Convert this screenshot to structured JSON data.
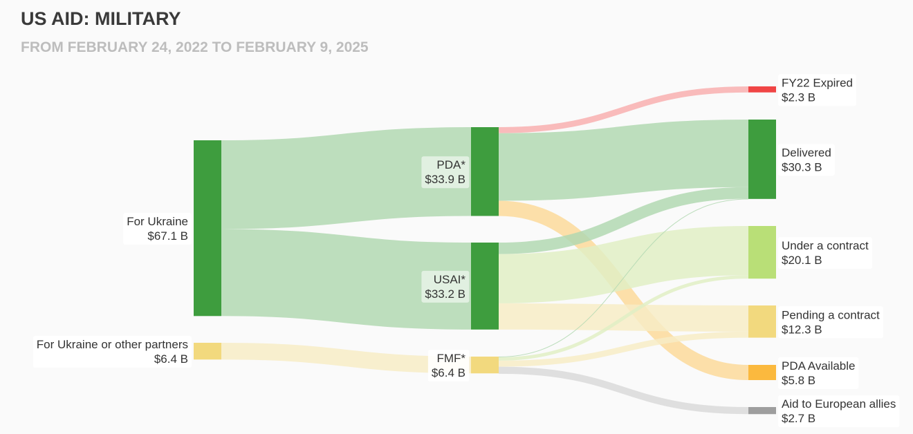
{
  "header": {
    "title": "US AID: MILITARY",
    "subtitle": "FROM FEBRUARY 24, 2022 TO FEBRUARY 9, 2025"
  },
  "chart_data": {
    "type": "sankey",
    "unit": "$ B",
    "nodes": [
      {
        "id": "ukraine",
        "name": "For Ukraine",
        "value_label": "$67.1 B",
        "value": 67.1,
        "color": "#3e9d3e"
      },
      {
        "id": "partners",
        "name": "For Ukraine or other partners",
        "value_label": "$6.4 B",
        "value": 6.4,
        "color": "#f2d97e"
      },
      {
        "id": "pda",
        "name": "PDA*",
        "value_label": "$33.9 B",
        "value": 33.9,
        "color": "#3e9d3e"
      },
      {
        "id": "usai",
        "name": "USAI*",
        "value_label": "$33.2 B",
        "value": 33.2,
        "color": "#3e9d3e"
      },
      {
        "id": "fmf",
        "name": "FMF*",
        "value_label": "$6.4 B",
        "value": 6.4,
        "color": "#f2d97e"
      },
      {
        "id": "expired",
        "name": "FY22 Expired",
        "value_label": "$2.3 B",
        "value": 2.3,
        "color": "#f04545"
      },
      {
        "id": "delivered",
        "name": "Delivered",
        "value_label": "$30.3 B",
        "value": 30.3,
        "color": "#3e9d3e"
      },
      {
        "id": "contract",
        "name": "Under a contract",
        "value_label": "$20.1 B",
        "value": 20.1,
        "color": "#b9df77"
      },
      {
        "id": "pending",
        "name": "Pending a contract",
        "value_label": "$12.3 B",
        "value": 12.3,
        "color": "#f2d97e"
      },
      {
        "id": "available",
        "name": "PDA Available",
        "value_label": "$5.8 B",
        "value": 5.8,
        "color": "#fbb93e"
      },
      {
        "id": "europe",
        "name": "Aid to European allies",
        "value_label": "$2.7 B",
        "value": 2.7,
        "color": "#9e9e9e"
      }
    ],
    "links": [
      {
        "source": "ukraine",
        "target": "pda",
        "value": 33.9,
        "color": "#b1d8b1"
      },
      {
        "source": "ukraine",
        "target": "usai",
        "value": 33.2,
        "color": "#b1d8b1"
      },
      {
        "source": "partners",
        "target": "fmf",
        "value": 6.4,
        "color": "#f7ecc6"
      },
      {
        "source": "pda",
        "target": "expired",
        "value": 2.3,
        "color": "#f8afaf"
      },
      {
        "source": "pda",
        "target": "delivered",
        "value": 25.8,
        "color": "#b1d8b1"
      },
      {
        "source": "pda",
        "target": "available",
        "value": 5.8,
        "color": "#fbd99a"
      },
      {
        "source": "usai",
        "target": "delivered",
        "value": 4.4,
        "color": "#b1d8b1"
      },
      {
        "source": "usai",
        "target": "contract",
        "value": 18.8,
        "color": "#e0efc4"
      },
      {
        "source": "usai",
        "target": "pending",
        "value": 10.0,
        "color": "#f7ecc6"
      },
      {
        "source": "fmf",
        "target": "delivered",
        "value": 0.1,
        "color": "#b1d8b1"
      },
      {
        "source": "fmf",
        "target": "contract",
        "value": 1.3,
        "color": "#e0efc4"
      },
      {
        "source": "fmf",
        "target": "pending",
        "value": 2.3,
        "color": "#f7ecc6"
      },
      {
        "source": "fmf",
        "target": "europe",
        "value": 2.7,
        "color": "#d9d9d9"
      }
    ]
  }
}
